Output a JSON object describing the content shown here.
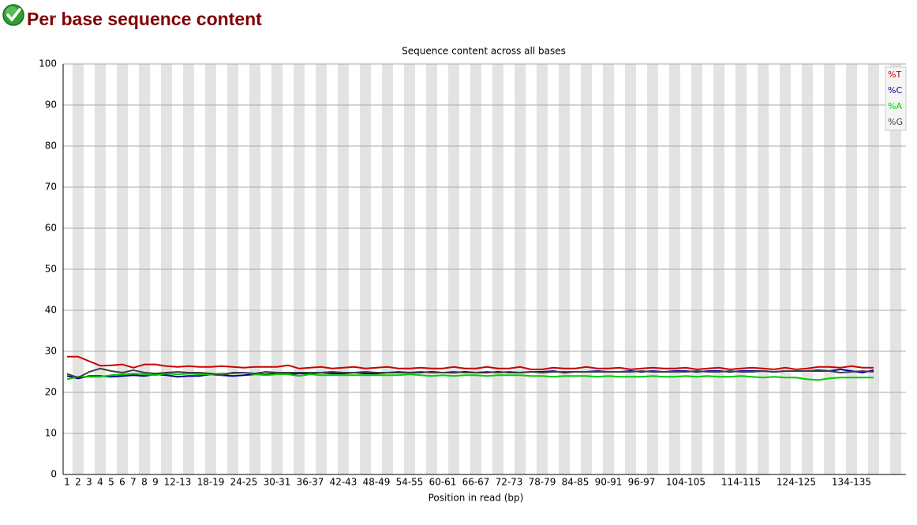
{
  "header": {
    "title": "Per base sequence content"
  },
  "chart_data": {
    "type": "line",
    "title": "Sequence content across all bases",
    "x_label": "Position in read (bp)",
    "categories": [
      "1",
      "2",
      "3",
      "4",
      "5",
      "6",
      "7",
      "8",
      "9",
      null,
      "12-13",
      null,
      null,
      "18-19",
      null,
      null,
      "24-25",
      null,
      null,
      "30-31",
      null,
      null,
      "36-37",
      null,
      null,
      "42-43",
      null,
      null,
      "48-49",
      null,
      null,
      "54-55",
      null,
      null,
      "60-61",
      null,
      null,
      "66-67",
      null,
      null,
      "72-73",
      null,
      null,
      "78-79",
      null,
      null,
      "84-85",
      null,
      null,
      "90-91",
      null,
      null,
      "96-97",
      null,
      null,
      null,
      "104-105",
      null,
      null,
      null,
      null,
      "114-115",
      null,
      null,
      null,
      null,
      "124-125",
      null,
      null,
      null,
      null,
      "134-135",
      null,
      null
    ],
    "series": [
      {
        "name": "%T",
        "color": "#cc0000",
        "values": [
          28.7,
          28.7,
          27.6,
          26.5,
          26.6,
          26.8,
          26.0,
          26.8,
          26.8,
          26.4,
          26.2,
          26.4,
          26.2,
          26.2,
          26.4,
          26.2,
          26.0,
          26.2,
          26.2,
          26.2,
          26.6,
          25.8,
          26.0,
          26.2,
          25.8,
          26.0,
          26.2,
          25.8,
          26.0,
          26.2,
          25.8,
          25.8,
          26.0,
          25.8,
          25.8,
          26.2,
          25.8,
          25.8,
          26.2,
          25.8,
          25.8,
          26.2,
          25.6,
          25.6,
          26.0,
          25.8,
          25.8,
          26.2,
          25.8,
          25.8,
          26.0,
          25.6,
          25.8,
          26.0,
          25.8,
          25.8,
          26.0,
          25.6,
          25.8,
          26.0,
          25.6,
          25.8,
          26.0,
          25.8,
          25.6,
          26.0,
          25.6,
          25.8,
          26.2,
          26.2,
          26.0,
          26.4,
          26.0,
          26.0
        ]
      },
      {
        "name": "%C",
        "color": "#000099",
        "values": [
          24.0,
          23.4,
          24.0,
          24.0,
          23.8,
          24.0,
          24.2,
          24.0,
          24.4,
          24.2,
          23.8,
          24.0,
          24.0,
          24.4,
          24.2,
          24.0,
          24.2,
          24.4,
          24.4,
          24.6,
          24.4,
          24.6,
          24.6,
          24.8,
          24.6,
          24.6,
          24.8,
          24.6,
          24.6,
          24.8,
          24.8,
          24.8,
          24.8,
          25.0,
          24.8,
          24.8,
          25.0,
          24.8,
          24.8,
          25.0,
          24.8,
          24.8,
          25.0,
          25.0,
          25.2,
          24.8,
          25.0,
          25.0,
          25.2,
          25.0,
          25.0,
          25.2,
          25.0,
          25.2,
          25.0,
          25.2,
          25.2,
          25.0,
          25.2,
          25.2,
          25.0,
          25.2,
          25.2,
          25.2,
          25.0,
          25.2,
          25.2,
          25.2,
          25.4,
          25.2,
          25.6,
          25.2,
          24.8,
          25.4
        ]
      },
      {
        "name": "%A",
        "color": "#00cc00",
        "values": [
          23.2,
          23.8,
          23.8,
          23.8,
          24.2,
          24.4,
          24.6,
          24.4,
          24.2,
          24.6,
          24.4,
          24.6,
          24.4,
          24.4,
          24.6,
          24.6,
          24.8,
          24.4,
          24.2,
          24.4,
          24.4,
          24.0,
          24.4,
          24.2,
          24.2,
          24.2,
          24.2,
          24.2,
          24.2,
          24.2,
          24.2,
          24.4,
          24.2,
          24.0,
          24.2,
          24.0,
          24.2,
          24.2,
          24.0,
          24.2,
          24.2,
          24.2,
          24.0,
          24.0,
          23.8,
          24.0,
          24.0,
          24.0,
          23.8,
          24.0,
          23.8,
          23.8,
          23.8,
          24.0,
          23.8,
          23.8,
          24.0,
          23.8,
          24.0,
          23.8,
          23.8,
          24.0,
          23.8,
          23.6,
          23.8,
          23.6,
          23.6,
          23.2,
          23.0,
          23.4,
          23.6,
          23.6,
          23.6,
          23.6
        ]
      },
      {
        "name": "%G",
        "color": "#404040",
        "values": [
          24.5,
          23.6,
          25.0,
          25.8,
          25.2,
          24.8,
          25.4,
          24.8,
          24.6,
          24.8,
          25.0,
          24.8,
          24.8,
          24.6,
          24.2,
          24.8,
          24.8,
          24.6,
          25.0,
          24.8,
          24.8,
          24.8,
          24.8,
          24.8,
          25.0,
          24.8,
          24.8,
          25.0,
          24.8,
          24.8,
          25.0,
          24.8,
          25.0,
          24.8,
          24.8,
          25.0,
          24.8,
          24.8,
          25.0,
          24.8,
          25.0,
          24.8,
          25.0,
          24.8,
          25.0,
          25.0,
          25.0,
          25.0,
          25.0,
          25.0,
          25.0,
          25.0,
          25.2,
          25.0,
          25.0,
          25.0,
          25.0,
          25.2,
          25.0,
          25.0,
          25.2,
          25.0,
          25.0,
          25.2,
          25.0,
          25.2,
          25.2,
          25.2,
          25.2,
          25.2,
          24.8,
          25.0,
          25.2,
          25.0
        ]
      }
    ],
    "ylim": [
      0,
      100
    ],
    "yticks": [
      0,
      10,
      20,
      30,
      40,
      50,
      60,
      70,
      80,
      90,
      100
    ],
    "grid": true,
    "legend": "top-right"
  }
}
